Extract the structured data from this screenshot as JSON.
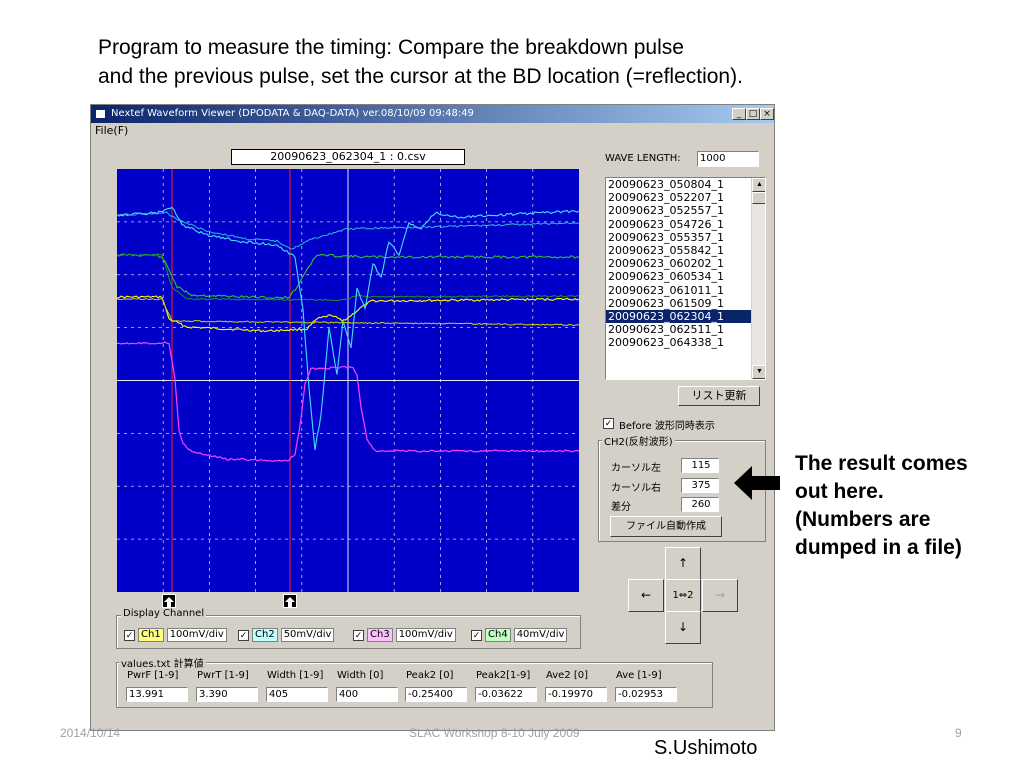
{
  "slide": {
    "caption_line1": "Program to measure the timing: Compare the breakdown pulse",
    "caption_line2": "and the previous pulse, set the cursor at the BD location (=reflection).",
    "result_note": [
      "The result comes",
      "out here.",
      "(Numbers are",
      "dumped in a file)"
    ],
    "footer_date": "2014/10/14",
    "footer_event": "SLAC Workshop 8-10 July 2009",
    "page_number": "9",
    "author": "S.Ushimoto"
  },
  "window": {
    "title": "Nextef Waveform Viewer (DPODATA & DAQ-DATA)   ver.08/10/09 09:48:49",
    "menu_file": "File(F)",
    "controls": {
      "minimize": "_",
      "maximize": "□",
      "close": "×"
    },
    "current_file": "20090623_062304_1 :  0.csv"
  },
  "wave_length": {
    "label": "WAVE LENGTH:",
    "value": "1000"
  },
  "file_list": {
    "items": [
      "20090623_050804_1",
      "20090623_052207_1",
      "20090623_052557_1",
      "20090623_054726_1",
      "20090623_055357_1",
      "20090623_055842_1",
      "20090623_060202_1",
      "20090623_060534_1",
      "20090623_061011_1",
      "20090623_061509_1",
      "20090623_062304_1",
      "20090623_062511_1",
      "20090623_064338_1"
    ],
    "selected_index": 10,
    "refresh_button": "リスト更新"
  },
  "before_checkbox": {
    "label": "Before 波形同時表示",
    "checked": true
  },
  "ch2_group": {
    "title": "CH2(反射波形)",
    "cursor_left_label": "カーソル左",
    "cursor_left_value": "115",
    "cursor_right_label": "カーソル右",
    "cursor_right_value": "375",
    "diff_label": "差分",
    "diff_value": "260",
    "auto_file_button": "ファイル自動作成"
  },
  "nav_pad": {
    "up": "↑",
    "down": "↓",
    "left": "←",
    "right": "→",
    "center": "1⇔2"
  },
  "display_channel": {
    "title": "Display Channel",
    "channels": [
      {
        "name": "Ch1",
        "scale": "100mV/div",
        "color": "#ffff80",
        "checked": true
      },
      {
        "name": "Ch2",
        "scale": "50mV/div",
        "color": "#c0ffff",
        "checked": true
      },
      {
        "name": "Ch3",
        "scale": "100mV/div",
        "color": "#ffc0ff",
        "checked": true
      },
      {
        "name": "Ch4",
        "scale": "40mV/div",
        "color": "#c0ffc0",
        "checked": true
      }
    ]
  },
  "values": {
    "title": "values.txt 計算値",
    "columns": [
      {
        "label": "PwrF [1-9]",
        "value": "13.991"
      },
      {
        "label": "PwrT [1-9]",
        "value": "3.390"
      },
      {
        "label": "Width [1-9]",
        "value": "405"
      },
      {
        "label": "Width [0]",
        "value": "400"
      },
      {
        "label": "Peak2 [0]",
        "value": "-0.25400"
      },
      {
        "label": "Peak2[1-9]",
        "value": "-0.03622"
      },
      {
        "label": "Ave2 [0]",
        "value": "-0.19970"
      },
      {
        "label": "Ave [1-9]",
        "value": "-0.02953"
      }
    ]
  },
  "colors": {
    "screen_bg": "#0000c8",
    "trace_ch1": "#ffff00",
    "trace_ch2": "#40e0ff",
    "trace_ch3": "#ff40ff",
    "trace_ch4": "#30c030",
    "cursor_line": "#ff2020",
    "grid": "#ffffff"
  }
}
